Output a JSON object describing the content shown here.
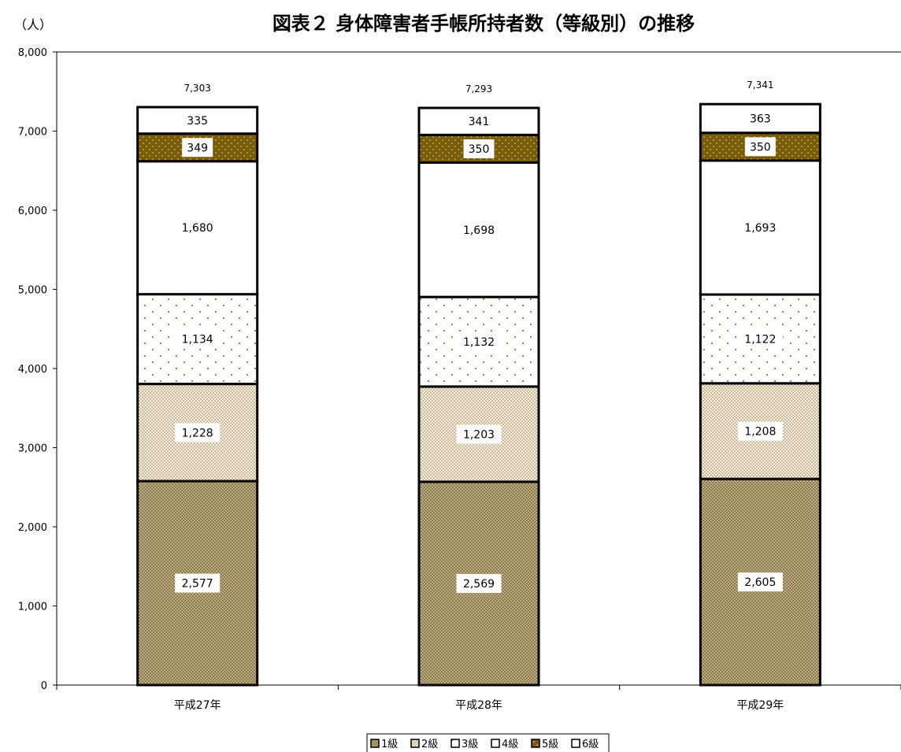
{
  "chart_data": {
    "type": "bar",
    "stacked": true,
    "title": "図表２ 身体障害者手帳所持者数（等級別）の推移",
    "ylabel": "（人）",
    "xlabel": "",
    "ylim": [
      0,
      8000
    ],
    "yticks": [
      "0",
      "1,000",
      "2,000",
      "3,000",
      "4,000",
      "5,000",
      "6,000",
      "7,000",
      "8,000"
    ],
    "ytick_values": [
      0,
      1000,
      2000,
      3000,
      4000,
      5000,
      6000,
      7000,
      8000
    ],
    "categories": [
      "平成27年",
      "平成28年",
      "平成29年"
    ],
    "series": [
      {
        "name": "1級",
        "values": [
          2577,
          2569,
          2605
        ],
        "labels": [
          "2,577",
          "2,569",
          "2,605"
        ],
        "pattern": "weave",
        "color": "#8a7a52"
      },
      {
        "name": "2級",
        "values": [
          1228,
          1203,
          1208
        ],
        "labels": [
          "1,228",
          "1,203",
          "1,208"
        ],
        "pattern": "finedots",
        "color": "#b39a5a"
      },
      {
        "name": "3級",
        "values": [
          1134,
          1132,
          1122
        ],
        "labels": [
          "1,134",
          "1,132",
          "1,122"
        ],
        "pattern": "sparsedots",
        "color": "#a08a40"
      },
      {
        "name": "4級",
        "values": [
          1680,
          1698,
          1693
        ],
        "labels": [
          "1,680",
          "1,698",
          "1,693"
        ],
        "pattern": "white",
        "color": "#ffffff"
      },
      {
        "name": "5級",
        "values": [
          349,
          350,
          350
        ],
        "labels": [
          "349",
          "350",
          "350"
        ],
        "pattern": "brown",
        "color": "#7a5c08"
      },
      {
        "name": "6級",
        "values": [
          335,
          341,
          363
        ],
        "labels": [
          "335",
          "341",
          "363"
        ],
        "pattern": "white",
        "color": "#ffffff"
      }
    ],
    "totals": [
      7303,
      7293,
      7341
    ],
    "total_labels": [
      "7,303",
      "7,293",
      "7,341"
    ],
    "grid": false,
    "legend_position": "bottom"
  }
}
